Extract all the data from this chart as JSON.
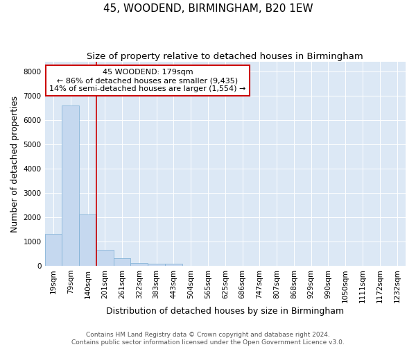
{
  "title": "45, WOODEND, BIRMINGHAM, B20 1EW",
  "subtitle": "Size of property relative to detached houses in Birmingham",
  "xlabel": "Distribution of detached houses by size in Birmingham",
  "ylabel": "Number of detached properties",
  "categories": [
    "19sqm",
    "79sqm",
    "140sqm",
    "201sqm",
    "261sqm",
    "322sqm",
    "383sqm",
    "443sqm",
    "504sqm",
    "565sqm",
    "625sqm",
    "686sqm",
    "747sqm",
    "807sqm",
    "868sqm",
    "929sqm",
    "990sqm",
    "1050sqm",
    "1111sqm",
    "1172sqm",
    "1232sqm"
  ],
  "values": [
    1300,
    6600,
    2100,
    650,
    300,
    120,
    80,
    80,
    0,
    0,
    0,
    0,
    0,
    0,
    0,
    0,
    0,
    0,
    0,
    0,
    0
  ],
  "bar_color": "#c5d8ef",
  "bar_edge_color": "#7aaed4",
  "ylim": [
    0,
    8400
  ],
  "yticks": [
    0,
    1000,
    2000,
    3000,
    4000,
    5000,
    6000,
    7000,
    8000
  ],
  "vline_x_index": 2.5,
  "vline_color": "#cc0000",
  "annotation_line1": "45 WOODEND: 179sqm",
  "annotation_line2": "← 86% of detached houses are smaller (9,435)",
  "annotation_line3": "14% of semi-detached houses are larger (1,554) →",
  "annotation_box_color": "#cc0000",
  "footnote": "Contains HM Land Registry data © Crown copyright and database right 2024.\nContains public sector information licensed under the Open Government Licence v3.0.",
  "bg_color": "#dce8f5",
  "title_fontsize": 11,
  "subtitle_fontsize": 9.5,
  "axis_label_fontsize": 9,
  "tick_fontsize": 7.5,
  "footnote_fontsize": 6.5,
  "annotation_fontsize": 8
}
